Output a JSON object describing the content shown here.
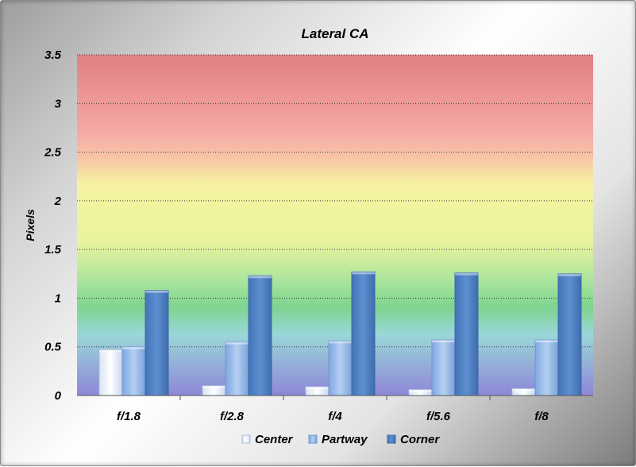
{
  "chart_data": {
    "type": "bar",
    "title": "Lateral CA",
    "xlabel": "",
    "ylabel": "Pixels",
    "ylim": [
      0,
      3.5
    ],
    "yticks": [
      "0",
      "0.5",
      "1",
      "1.5",
      "2",
      "2.5",
      "3",
      "3.5"
    ],
    "categories": [
      "f/1.8",
      "f/2.8",
      "f/4",
      "f/5.6",
      "f/8"
    ],
    "series": [
      {
        "name": "Center",
        "values": [
          0.47,
          0.1,
          0.09,
          0.06,
          0.07
        ]
      },
      {
        "name": "Partway",
        "values": [
          0.5,
          0.55,
          0.56,
          0.57,
          0.57
        ]
      },
      {
        "name": "Corner",
        "values": [
          1.08,
          1.23,
          1.27,
          1.26,
          1.25
        ]
      }
    ],
    "grid": true,
    "legend_position": "bottom",
    "background_bands": "red-yellow-green-blue gradient",
    "colors": {
      "Center": "#eef3fb",
      "Partway": "#8fb4e6",
      "Corner": "#4f81c3"
    }
  }
}
